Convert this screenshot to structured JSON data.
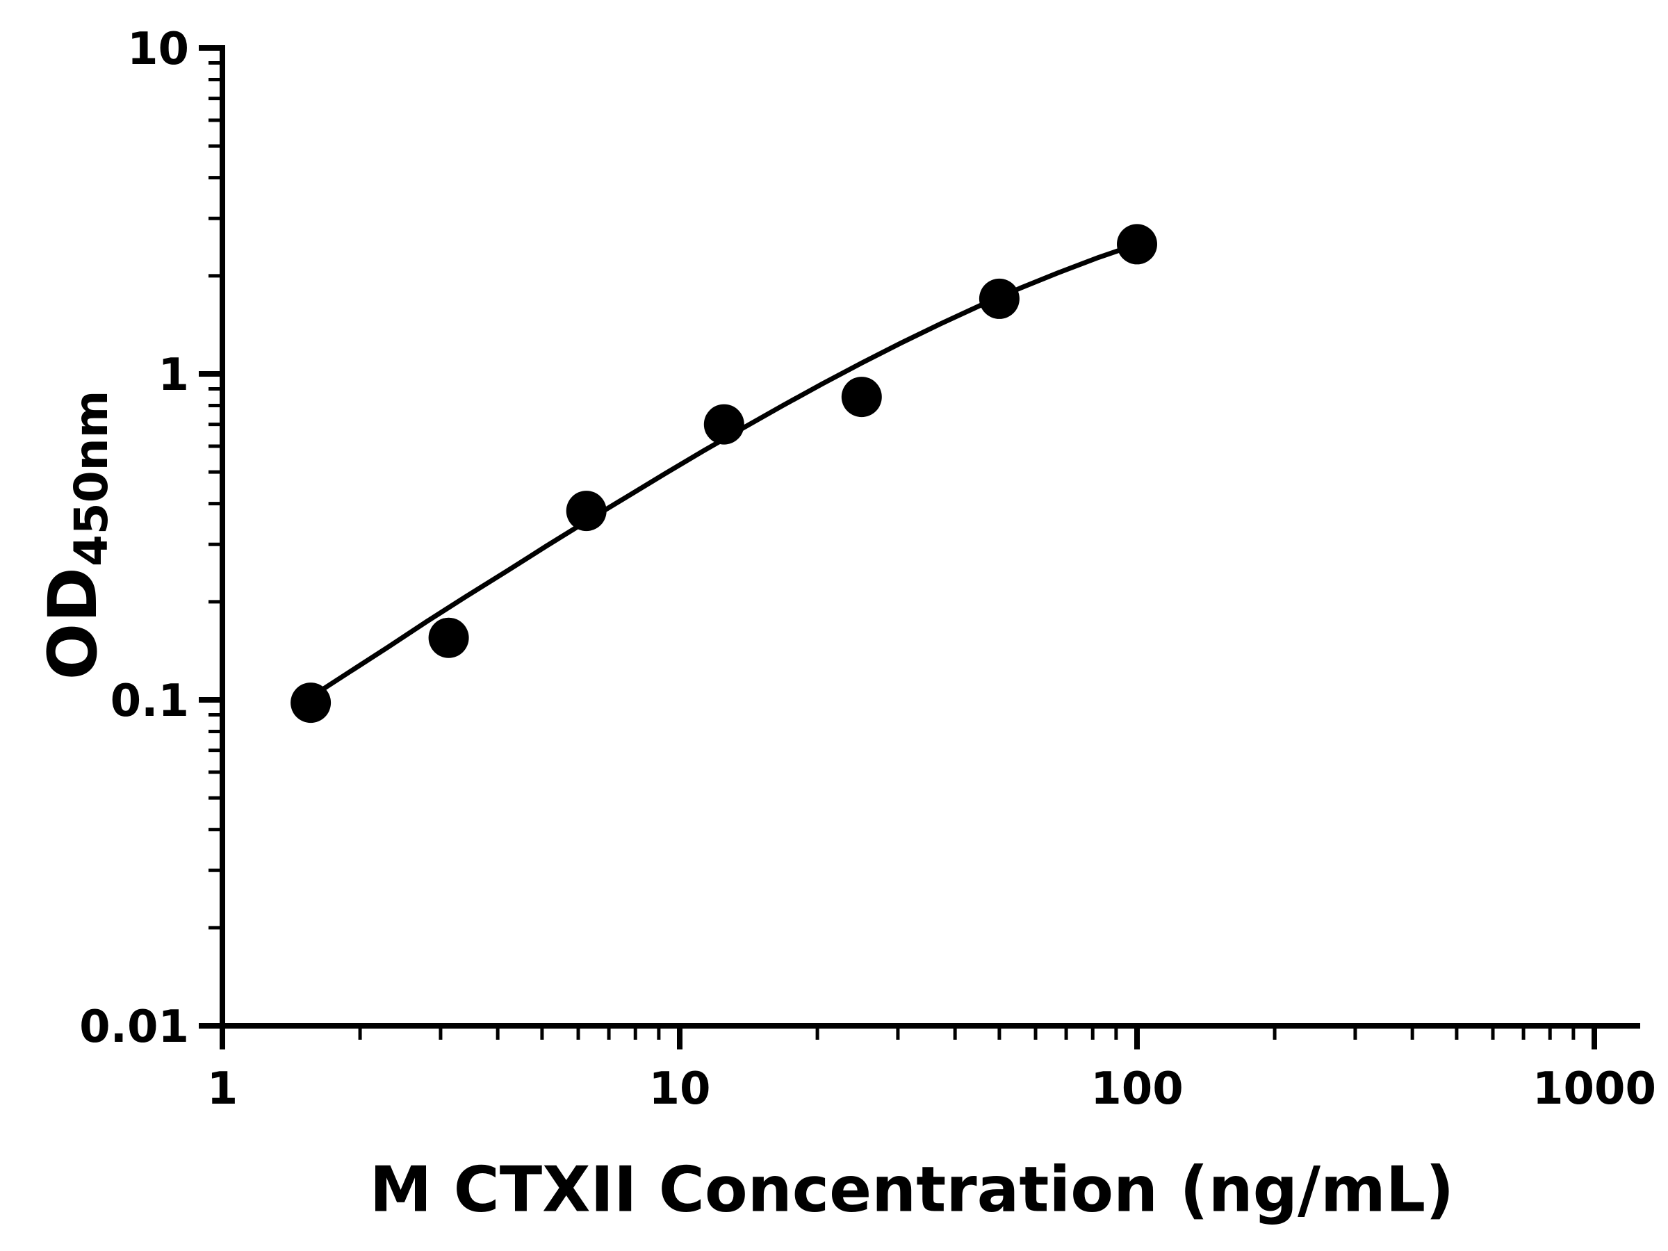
{
  "chart_data": {
    "type": "scatter",
    "title": "",
    "xlabel": "M CTXII Concentration (ng/mL)",
    "ylabel": "OD450nm",
    "ylabel_main": "OD",
    "ylabel_sub": "450nm",
    "x_scale": "log",
    "y_scale": "log",
    "xlim": [
      1,
      1000
    ],
    "ylim": [
      0.01,
      10
    ],
    "x_ticks": [
      1,
      10,
      100,
      1000
    ],
    "x_tick_labels": [
      "1",
      "10",
      "100",
      "1000"
    ],
    "y_ticks": [
      0.01,
      0.1,
      1,
      10
    ],
    "y_tick_labels": [
      "0.01",
      "0.1",
      "1",
      "10"
    ],
    "grid": false,
    "legend": "none",
    "background": "#ffffff",
    "axis_color": "#000000",
    "curve_color": "#000000",
    "marker": {
      "shape": "circle",
      "color": "#000000"
    },
    "points": [
      [
        1.56,
        0.098
      ],
      [
        3.125,
        0.155
      ],
      [
        6.25,
        0.38
      ],
      [
        12.5,
        0.7
      ],
      [
        25,
        0.85
      ],
      [
        50,
        1.7
      ],
      [
        100,
        2.5
      ]
    ],
    "fit_curve": [
      [
        1.56,
        0.102
      ],
      [
        1.9,
        0.122
      ],
      [
        2.3,
        0.145
      ],
      [
        2.8,
        0.174
      ],
      [
        3.4,
        0.207
      ],
      [
        4.2,
        0.249
      ],
      [
        5.1,
        0.296
      ],
      [
        6.25,
        0.353
      ],
      [
        7.6,
        0.417
      ],
      [
        9.3,
        0.495
      ],
      [
        11.3,
        0.582
      ],
      [
        13.8,
        0.684
      ],
      [
        16.8,
        0.8
      ],
      [
        20.5,
        0.932
      ],
      [
        25,
        1.08
      ],
      [
        30.5,
        1.245
      ],
      [
        37.2,
        1.425
      ],
      [
        45.4,
        1.621
      ],
      [
        55.4,
        1.83
      ],
      [
        67.6,
        2.049
      ],
      [
        82.4,
        2.277
      ],
      [
        100,
        2.5
      ]
    ]
  }
}
